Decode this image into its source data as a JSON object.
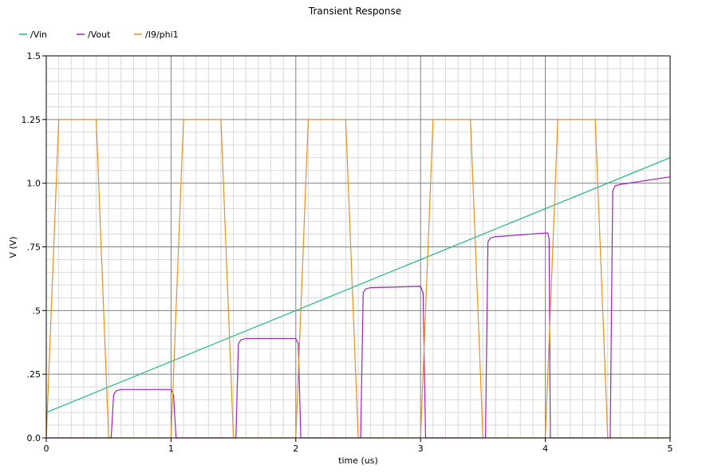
{
  "chart_data": {
    "type": "line",
    "title": "Transient Response",
    "xlabel": "time (us)",
    "ylabel": "V (V)",
    "xlim": [
      0,
      5
    ],
    "ylim": [
      0,
      1.5
    ],
    "x_ticks": [
      {
        "value": 0,
        "label": "0"
      },
      {
        "value": 1,
        "label": "1"
      },
      {
        "value": 2,
        "label": "2"
      },
      {
        "value": 3,
        "label": "3"
      },
      {
        "value": 4,
        "label": "4"
      },
      {
        "value": 5,
        "label": "5"
      }
    ],
    "y_ticks": [
      {
        "value": 0,
        "label": "0.0"
      },
      {
        "value": 0.25,
        "label": ".25"
      },
      {
        "value": 0.5,
        "label": ".5"
      },
      {
        "value": 0.75,
        "label": ".75"
      },
      {
        "value": 1.0,
        "label": "1.0"
      },
      {
        "value": 1.25,
        "label": "1.25"
      },
      {
        "value": 1.5,
        "label": "1.5"
      }
    ],
    "grid": true,
    "legend_position": "top-left",
    "colors": {
      "background": "#ffffff",
      "grid_major": "#808080",
      "grid_minor": "#d9d9d9",
      "axis": "#000000"
    },
    "series": [
      {
        "name": "/Vin",
        "color": "#1db98a",
        "x": [
          0,
          5
        ],
        "y": [
          0.1,
          1.1
        ]
      },
      {
        "name": "/Vout",
        "color": "#a020c0",
        "x": [
          0,
          0.52,
          0.54,
          0.56,
          0.6,
          1.0,
          1.02,
          1.04,
          1.06,
          1.52,
          1.54,
          1.56,
          1.6,
          2.0,
          2.02,
          2.04,
          2.06,
          2.52,
          2.54,
          2.56,
          2.6,
          3.0,
          3.02,
          3.04,
          3.06,
          3.52,
          3.54,
          3.56,
          3.6,
          4.02,
          4.03,
          4.04,
          4.06,
          4.52,
          4.54,
          4.56,
          4.6,
          5.0
        ],
        "y": [
          0,
          0,
          0.17,
          0.185,
          0.19,
          0.19,
          0.17,
          0,
          0,
          0,
          0.37,
          0.385,
          0.39,
          0.39,
          0.37,
          0,
          0,
          0,
          0.57,
          0.585,
          0.59,
          0.595,
          0.57,
          0,
          0,
          0,
          0.77,
          0.785,
          0.79,
          0.805,
          0.78,
          0,
          0,
          0,
          0.97,
          0.99,
          0.995,
          1.025
        ]
      },
      {
        "name": "/I9/phi1",
        "color": "#e89020",
        "x": [
          0,
          0.1,
          0.4,
          0.5,
          1.0,
          1.1,
          1.4,
          1.5,
          2.0,
          2.1,
          2.4,
          2.5,
          3.0,
          3.1,
          3.4,
          3.5,
          4.0,
          4.1,
          4.4,
          4.5,
          5.0
        ],
        "y": [
          0,
          1.25,
          1.25,
          0,
          0,
          1.25,
          1.25,
          0,
          0,
          1.25,
          1.25,
          0,
          0,
          1.25,
          1.25,
          0,
          0,
          1.25,
          1.25,
          0,
          0
        ]
      }
    ]
  }
}
